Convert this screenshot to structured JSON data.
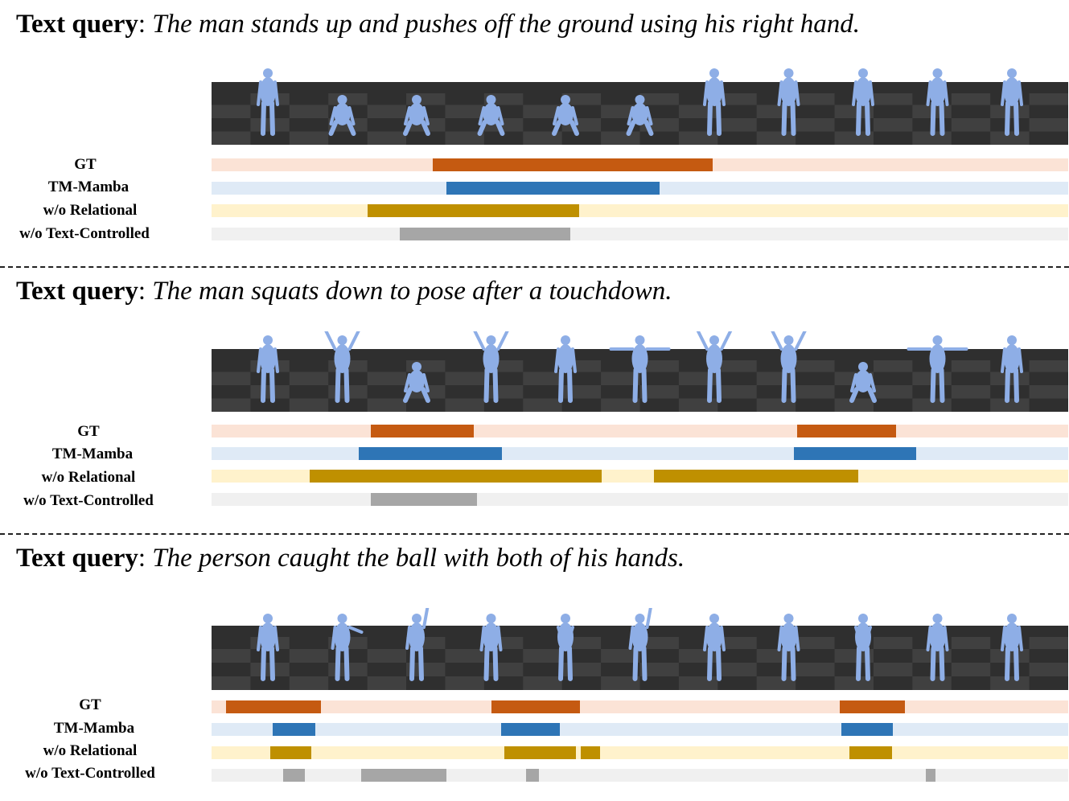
{
  "panels": [
    {
      "query_lead": "Text query",
      "query_text": "The man stands up and pushes off the ground using his right hand.",
      "figures": 11,
      "poses": [
        "stand",
        "crouch",
        "kneel",
        "crawl",
        "crawl",
        "crawl",
        "stand",
        "stand",
        "stand",
        "stand",
        "stand"
      ],
      "rows": [
        {
          "label": "GT",
          "segments": [
            [
              0.258,
              0.585
            ]
          ]
        },
        {
          "label": "TM-Mamba",
          "segments": [
            [
              0.274,
              0.523
            ]
          ]
        },
        {
          "label": "w/o Relational",
          "segments": [
            [
              0.182,
              0.429
            ]
          ]
        },
        {
          "label": "w/o Text-Controlled",
          "segments": [
            [
              0.22,
              0.419
            ]
          ]
        }
      ]
    },
    {
      "query_lead": "Text query",
      "query_text": "The man squats down to pose after a touchdown.",
      "figures": 11,
      "poses": [
        "stand",
        "arms-up",
        "squat",
        "arms-up",
        "stand",
        "arms-out",
        "arms-up",
        "arms-up",
        "squat",
        "arms-out",
        "stand"
      ],
      "rows": [
        {
          "label": "GT",
          "segments": [
            [
              0.186,
              0.306
            ],
            [
              0.684,
              0.799
            ]
          ]
        },
        {
          "label": "TM-Mamba",
          "segments": [
            [
              0.172,
              0.339
            ],
            [
              0.68,
              0.823
            ]
          ]
        },
        {
          "label": "w/o Relational",
          "segments": [
            [
              0.115,
              0.455
            ],
            [
              0.516,
              0.755
            ]
          ]
        },
        {
          "label": "w/o Text-Controlled",
          "segments": [
            [
              0.186,
              0.31
            ]
          ]
        }
      ]
    },
    {
      "query_lead": "Text query",
      "query_text": "The person caught the ball with both of his hands.",
      "figures": 11,
      "poses": [
        "stand",
        "reach",
        "arm-up",
        "stand",
        "hands-front",
        "arm-up",
        "stand",
        "stand",
        "hands-front",
        "stand",
        "stand"
      ],
      "rows": [
        {
          "label": "GT",
          "segments": [
            [
              0.017,
              0.128
            ],
            [
              0.327,
              0.43
            ],
            [
              0.733,
              0.809
            ]
          ]
        },
        {
          "label": "TM-Mamba",
          "segments": [
            [
              0.071,
              0.121
            ],
            [
              0.338,
              0.407
            ],
            [
              0.735,
              0.795
            ]
          ]
        },
        {
          "label": "w/o Relational",
          "segments": [
            [
              0.069,
              0.116
            ],
            [
              0.342,
              0.425
            ],
            [
              0.431,
              0.454
            ],
            [
              0.745,
              0.794
            ]
          ]
        },
        {
          "label": "w/o Text-Controlled",
          "segments": [
            [
              0.084,
              0.109
            ],
            [
              0.175,
              0.274
            ],
            [
              0.367,
              0.382
            ],
            [
              0.834,
              0.845
            ]
          ]
        }
      ]
    }
  ],
  "colors": {
    "GT": {
      "bg": "#fbe3d6",
      "fg": "#c55a11"
    },
    "TM-Mamba": {
      "bg": "#dfeaf6",
      "fg": "#2e75b6"
    },
    "w/o Relational": {
      "bg": "#fff2cc",
      "fg": "#bf9000"
    },
    "w/o Text-Controlled": {
      "bg": "#f0f0f0",
      "fg": "#a6a6a6"
    },
    "figure": "#8eaee6",
    "floor_dark": "#2f2f2f",
    "floor_light": "#404040"
  }
}
